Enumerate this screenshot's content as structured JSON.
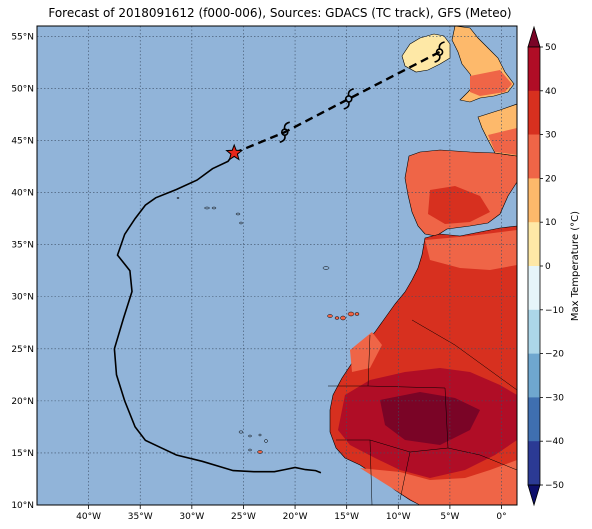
{
  "map": {
    "title": "Forecast of 2018091612 (f000-006), Sources: GDACS (TC track), GFS (Meteo)",
    "lon_ticks": [
      "40°W",
      "35°W",
      "30°W",
      "25°W",
      "20°W",
      "15°W",
      "10°W",
      "5°W",
      "0°"
    ],
    "lat_ticks": [
      "55°N",
      "50°N",
      "45°N",
      "40°N",
      "35°N",
      "30°N",
      "25°N",
      "20°N",
      "15°N",
      "10°N"
    ],
    "colors": {
      "ocean": "#91b4d9",
      "grid": "#3d4f66",
      "track": "#000000",
      "current_position": "#e8261a"
    }
  },
  "colorbar": {
    "label": "Max Temperature (°C)",
    "ticks": [
      "50",
      "40",
      "30",
      "20",
      "10",
      "0",
      "−10",
      "−20",
      "−30",
      "−40",
      "−50"
    ],
    "colors": [
      "#7a0426",
      "#b00d26",
      "#d7301f",
      "#ef6547",
      "#fdb96b",
      "#fee8a6",
      "#e6f5f9",
      "#acd6e8",
      "#6fa7cf",
      "#3f6fb0",
      "#2b3a94",
      "#0d0f6b"
    ]
  },
  "track": {
    "past": [
      [
        -17.5,
        13.1
      ],
      [
        -18,
        13.3
      ],
      [
        -19,
        13.4
      ],
      [
        -20,
        13.6
      ],
      [
        -21,
        13.4
      ],
      [
        -22,
        13.2
      ],
      [
        -24,
        13.2
      ],
      [
        -26,
        13.3
      ],
      [
        -27,
        13.6
      ],
      [
        -29,
        14.2
      ],
      [
        -31.5,
        14.8
      ],
      [
        -33,
        15.5
      ],
      [
        -34.5,
        16.2
      ],
      [
        -35.5,
        17.5
      ],
      [
        -36.5,
        20
      ],
      [
        -37.3,
        22.5
      ],
      [
        -37.5,
        25
      ],
      [
        -36.6,
        28
      ],
      [
        -35.8,
        30.5
      ],
      [
        -36,
        32.5
      ],
      [
        -37.2,
        34
      ],
      [
        -36.5,
        36
      ],
      [
        -35.5,
        37.5
      ],
      [
        -34.5,
        38.8
      ],
      [
        -33.5,
        39.5
      ],
      [
        -31.5,
        40.3
      ],
      [
        -29.5,
        41.2
      ],
      [
        -28,
        42.3
      ],
      [
        -26.5,
        43
      ],
      [
        -25.9,
        43.8
      ]
    ],
    "current": [
      -25.9,
      43.8
    ],
    "forecast": [
      [
        -25.9,
        43.8
      ],
      [
        -21,
        45.8
      ],
      [
        -14.8,
        49
      ],
      [
        -6,
        53.5
      ]
    ],
    "storm_symbols": [
      [
        -21,
        45.8
      ],
      [
        -14.8,
        49
      ],
      [
        -6,
        53.5
      ]
    ]
  }
}
